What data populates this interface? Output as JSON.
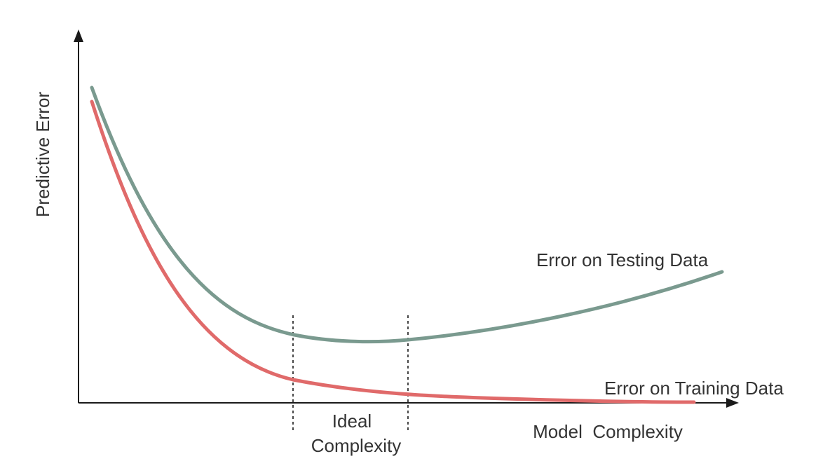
{
  "axes": {
    "y_label": "Predictive Error",
    "x_label": "Model  Complexity"
  },
  "region": {
    "label_line1": "Ideal",
    "label_line2": "Complexity"
  },
  "curves": {
    "testing": {
      "label": "Error on Testing Data",
      "color": "#7a9a8f"
    },
    "training": {
      "label": "Error on Training Data",
      "color": "#e06a6a"
    }
  },
  "colors": {
    "axis": "#1a1a1a",
    "text": "#333333"
  }
}
